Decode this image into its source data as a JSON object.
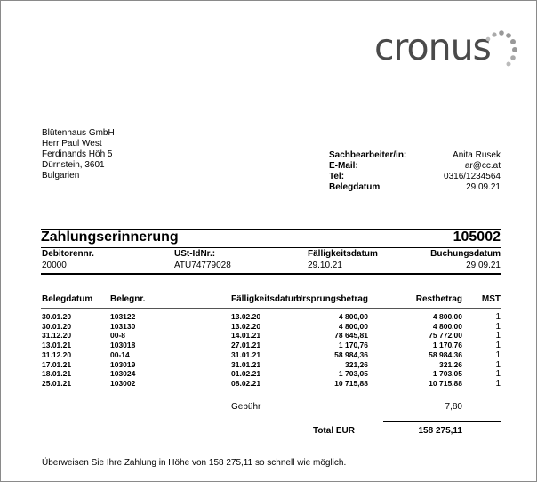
{
  "logo": {
    "text": "cronus"
  },
  "address": [
    "Blütenhaus GmbH",
    "Herr Paul West",
    "Ferdinands Höh 5",
    "Dürnstein, 3601",
    "Bulgarien"
  ],
  "contact": [
    {
      "label": "Sachbearbeiter/in:",
      "value": "Anita Rusek"
    },
    {
      "label": "E-Mail:",
      "value": "ar@cc.at"
    },
    {
      "label": "Tel:",
      "value": "0316/1234564"
    },
    {
      "label": "Belegdatum",
      "value": "29.09.21"
    }
  ],
  "title": "Zahlungserinnerung",
  "doc_number": "105002",
  "meta": {
    "debitor_label": "Debitorennr.",
    "debitor": "20000",
    "ustid_label": "USt-IdNr.:",
    "ustid": "ATU74779028",
    "due_label": "Fälligkeitsdatum",
    "due": "29.10.21",
    "posting_label": "Buchungsdatum",
    "posting": "29.09.21"
  },
  "table": {
    "headers": [
      "Belegdatum",
      "Belegnr.",
      "Fälligkeitsdatum",
      "Ursprungsbetrag",
      "Restbetrag",
      "MST"
    ],
    "rows": [
      [
        "30.01.20",
        "103122",
        "13.02.20",
        "4 800,00",
        "4 800,00",
        "1"
      ],
      [
        "30.01.20",
        "103130",
        "13.02.20",
        "4 800,00",
        "4 800,00",
        "1"
      ],
      [
        "31.12.20",
        "00-8",
        "14.01.21",
        "78 645,81",
        "75 772,00",
        "1"
      ],
      [
        "13.01.21",
        "103018",
        "27.01.21",
        "1 170,76",
        "1 170,76",
        "1"
      ],
      [
        "31.12.20",
        "00-14",
        "31.01.21",
        "58 984,36",
        "58 984,36",
        "1"
      ],
      [
        "17.01.21",
        "103019",
        "31.01.21",
        "321,26",
        "321,26",
        "1"
      ],
      [
        "18.01.21",
        "103024",
        "01.02.21",
        "1 703,05",
        "1 703,05",
        "1"
      ],
      [
        "25.01.21",
        "103002",
        "08.02.21",
        "10 715,88",
        "10 715,88",
        "1"
      ]
    ]
  },
  "fee": {
    "label": "Gebühr",
    "value": "7,80"
  },
  "total": {
    "label": "Total EUR",
    "value": "158 275,11"
  },
  "footer": "Überweisen Sie Ihre Zahlung in Höhe von 158 275,11 so schnell wie möglich."
}
